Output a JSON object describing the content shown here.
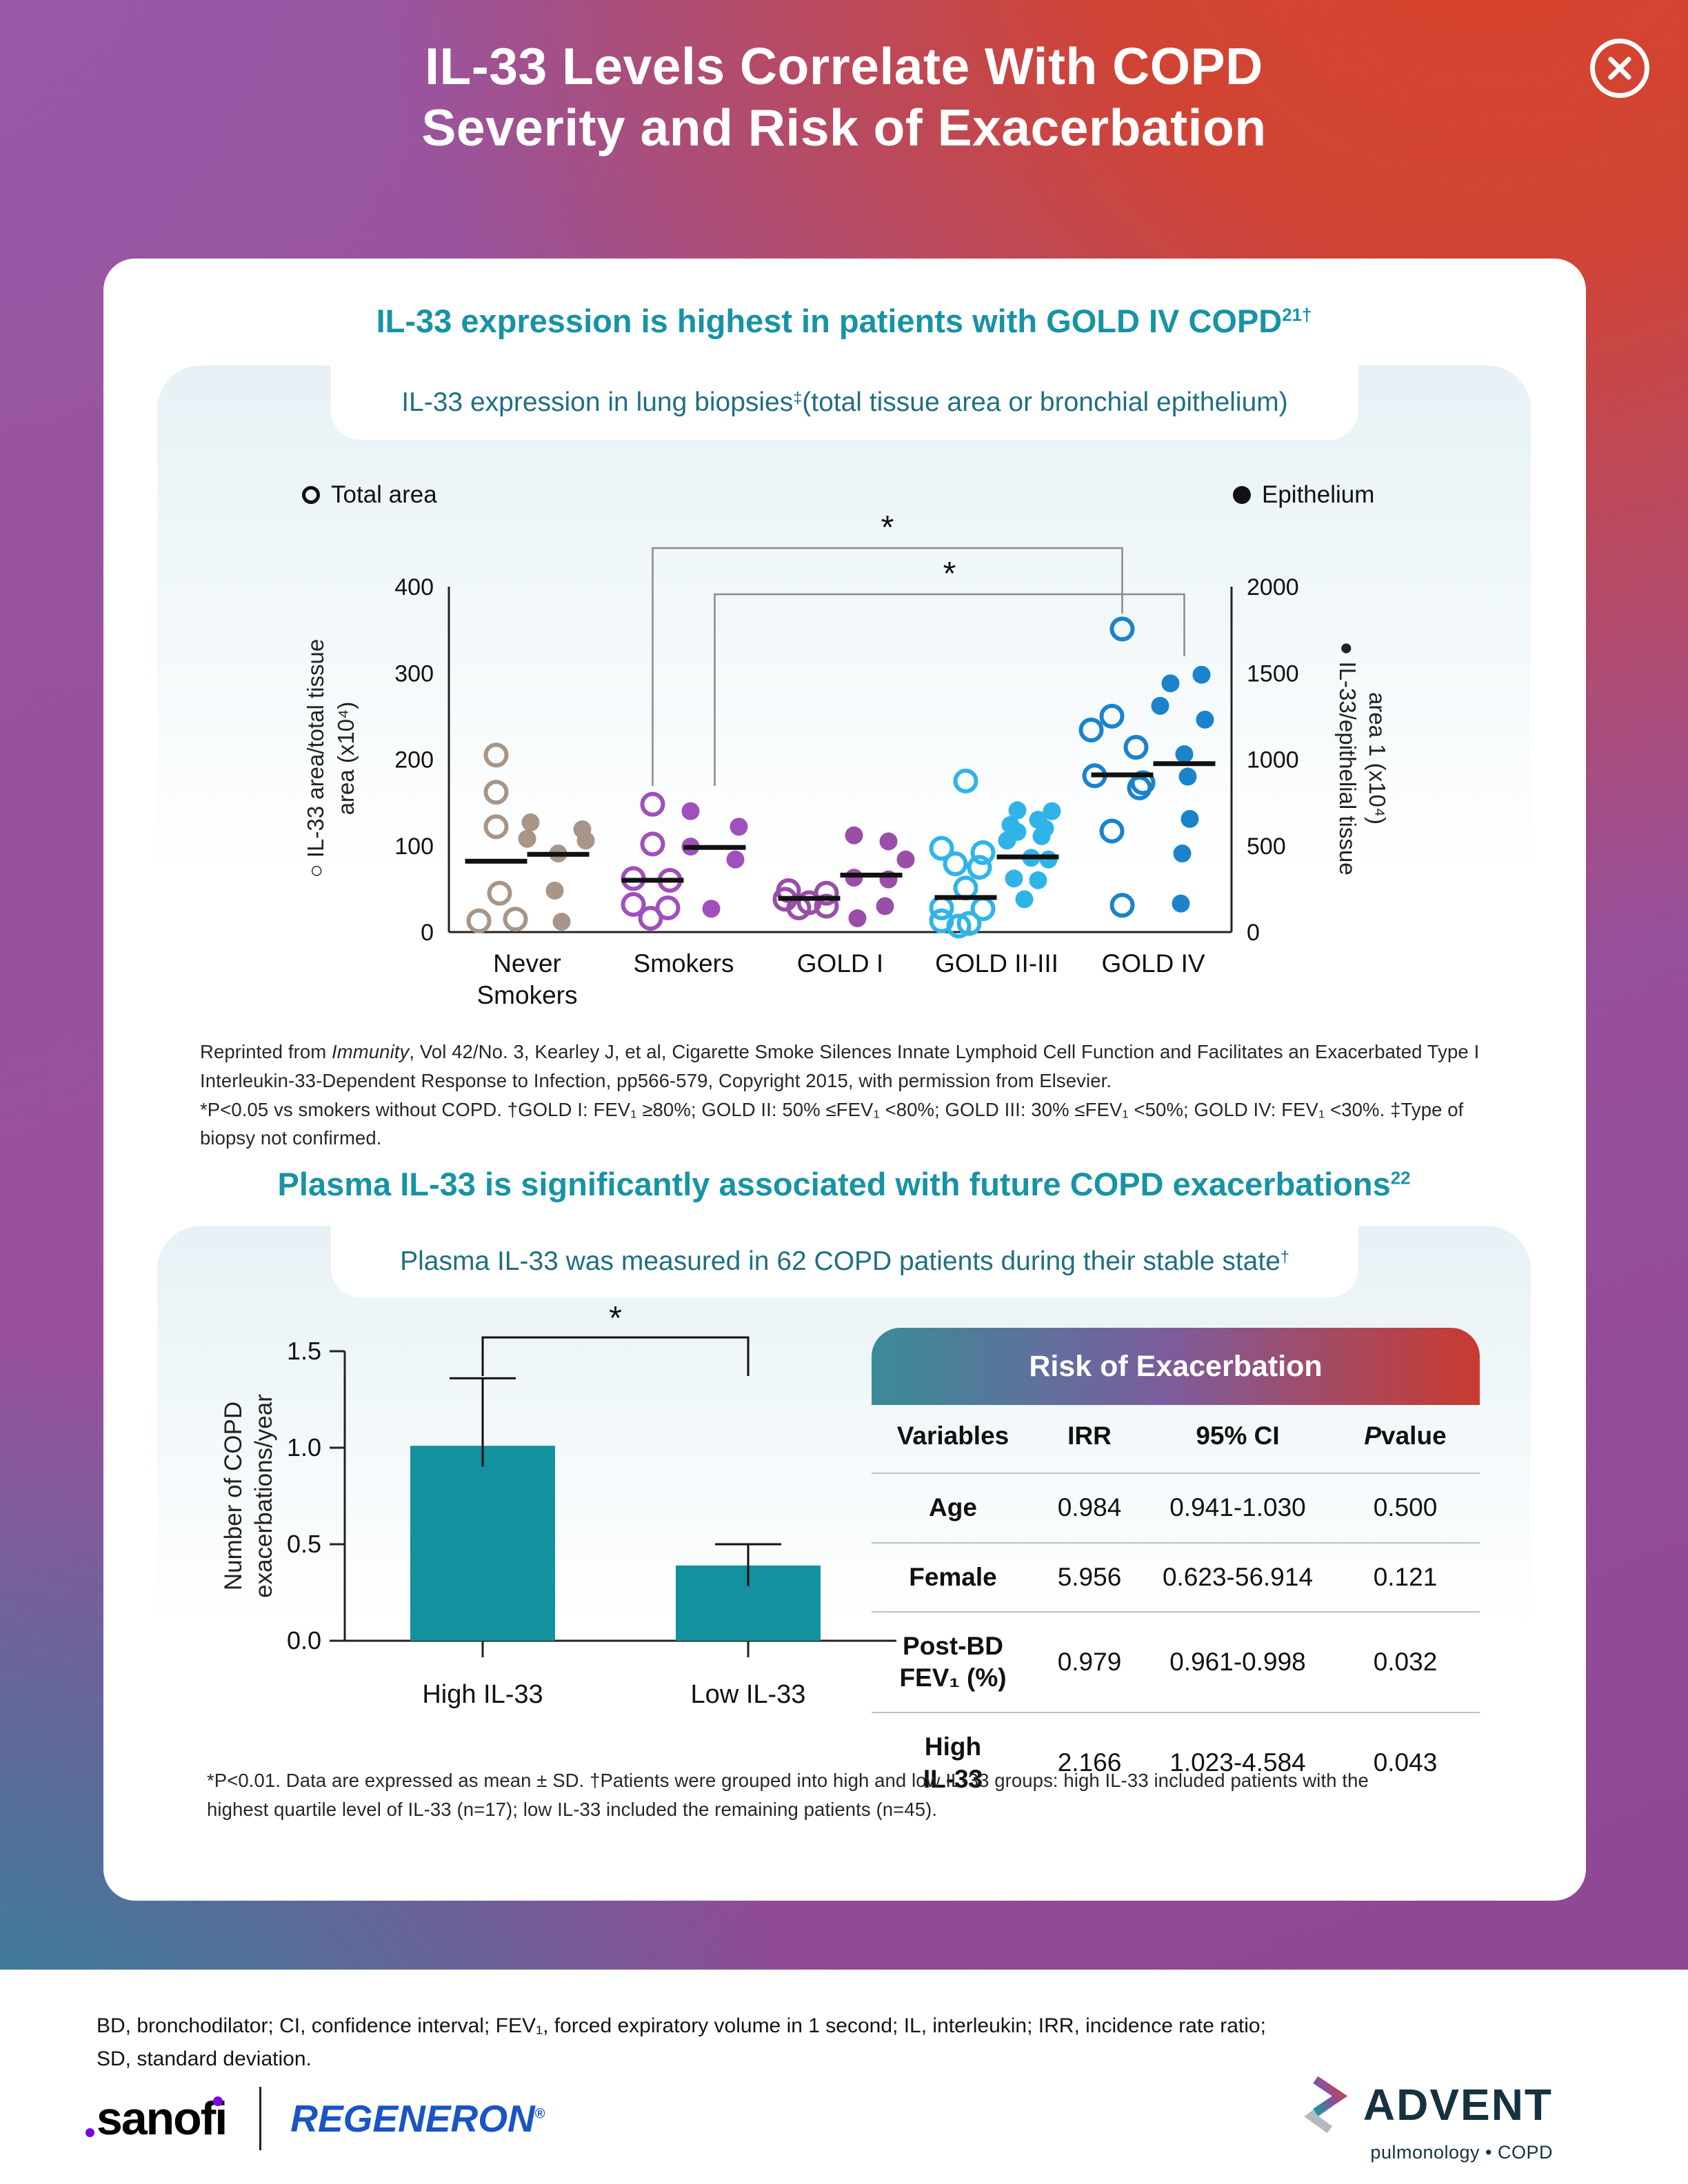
{
  "header": {
    "title_line1": "IL-33 Levels Correlate With COPD",
    "title_line2": "Severity and Risk of Exacerbation"
  },
  "section1": {
    "heading": "IL-33 expression is highest in patients with GOLD IV COPD",
    "heading_sup": "21†",
    "subtitle": "IL-33 expression in lung biopsies",
    "subtitle_sup": "‡",
    "subtitle_rest": " (total tissue area or bronchial epithelium)",
    "legend": {
      "open": "Total area",
      "filled": "Epithelium"
    },
    "footnote": {
      "reprint_pre": "Reprinted from ",
      "reprint_italic": "Immunity",
      "reprint_rest": ", Vol 42/No. 3, Kearley J, et al, Cigarette Smoke Silences Innate Lymphoid Cell Function and Facilitates an Exacerbated Type I Interleukin-33-Dependent Response to Infection, pp566-579, Copyright 2015, with permission from Elsevier.",
      "stats": "*P<0.05 vs smokers without COPD. †GOLD I: FEV₁ ≥80%; GOLD II: 50% ≤FEV₁ <80%; GOLD III: 30% ≤FEV₁ <50%; GOLD IV: FEV₁ <30%. ‡Type of biopsy not confirmed."
    }
  },
  "section2": {
    "heading": "Plasma IL-33 is significantly associated with future COPD exacerbations",
    "heading_sup": "22",
    "subtitle": "Plasma IL-33 was measured in 62 COPD patients during their stable state",
    "subtitle_sup": "†",
    "footnote": "*P<0.01. Data are expressed as mean ± SD. †Patients were grouped into high and low IL-33 groups: high IL-33 included patients with the highest quartile level of IL-33 (n=17); low IL-33 included the remaining patients (n=45)."
  },
  "chart_data": [
    {
      "type": "scatter",
      "title": "IL-33 expression in lung biopsies (total tissue area or bronchial epithelium)",
      "legend": [
        "Total area",
        "Epithelium"
      ],
      "left_axis": {
        "label_lines": [
          "○ IL-33 area/total tissue",
          "area (x10⁴)"
        ],
        "lim": [
          0,
          400
        ],
        "ticks": [
          0,
          100,
          200,
          300,
          400
        ]
      },
      "right_axis": {
        "label_lines": [
          "● IL-33/epithelial tissue",
          "area 1 (x10⁴)"
        ],
        "lim": [
          0,
          2000
        ],
        "ticks": [
          0,
          500,
          1000,
          1500,
          2000
        ]
      },
      "groups": [
        {
          "label_lines": [
            "Never",
            "Smokers"
          ],
          "color": "#a79587",
          "open_points": [
            [
              0,
              205
            ],
            [
              0,
              162
            ],
            [
              0,
              122
            ],
            [
              5,
              45
            ],
            [
              -25,
              13
            ],
            [
              28,
              15
            ]
          ],
          "open_median": 82,
          "filled_points": [
            [
              -40,
              635
            ],
            [
              35,
              595
            ],
            [
              -45,
              540
            ],
            [
              40,
              530
            ],
            [
              0,
              455
            ],
            [
              -5,
              240
            ],
            [
              5,
              60
            ]
          ],
          "filled_median": 450
        },
        {
          "label_lines": [
            "Smokers"
          ],
          "color": "#a050bb",
          "open_points": [
            [
              0,
              148
            ],
            [
              0,
              102
            ],
            [
              -28,
              62
            ],
            [
              25,
              60
            ],
            [
              -28,
              32
            ],
            [
              22,
              28
            ],
            [
              -3,
              16
            ]
          ],
          "open_median": 60,
          "filled_points": [
            [
              -35,
              700
            ],
            [
              35,
              610
            ],
            [
              -35,
              495
            ],
            [
              30,
              420
            ],
            [
              -5,
              135
            ]
          ],
          "filled_median": 490
        },
        {
          "label_lines": [
            "GOLD I"
          ],
          "color": "#9a4ea8",
          "open_points": [
            [
              -30,
              48
            ],
            [
              25,
              45
            ],
            [
              -35,
              38
            ],
            [
              0,
              34
            ],
            [
              25,
              30
            ],
            [
              -15,
              28
            ]
          ],
          "open_median": 39,
          "filled_points": [
            [
              -25,
              560
            ],
            [
              25,
              525
            ],
            [
              50,
              420
            ],
            [
              -25,
              315
            ],
            [
              25,
              305
            ],
            [
              20,
              150
            ],
            [
              -20,
              80
            ]
          ],
          "filled_median": 330
        },
        {
          "label_lines": [
            "GOLD II-III"
          ],
          "color": "#30b4e8",
          "open_points": [
            [
              0,
              175
            ],
            [
              -35,
              97
            ],
            [
              25,
              92
            ],
            [
              -15,
              79
            ],
            [
              20,
              75
            ],
            [
              0,
              51
            ],
            [
              -35,
              28
            ],
            [
              25,
              27
            ],
            [
              -35,
              13
            ],
            [
              5,
              10
            ],
            [
              -10,
              7
            ]
          ],
          "open_median": 40,
          "filled_points": [
            [
              -15,
              705
            ],
            [
              35,
              700
            ],
            [
              15,
              650
            ],
            [
              -25,
              620
            ],
            [
              25,
              600
            ],
            [
              -15,
              580
            ],
            [
              20,
              555
            ],
            [
              -30,
              530
            ],
            [
              5,
              430
            ],
            [
              30,
              420
            ],
            [
              -20,
              310
            ],
            [
              15,
              300
            ],
            [
              -5,
              190
            ]
          ],
          "filled_median": 435
        },
        {
          "label_lines": [
            "GOLD IV"
          ],
          "color": "#1a83cc",
          "open_points": [
            [
              0,
              351
            ],
            [
              -15,
              250
            ],
            [
              -45,
              234
            ],
            [
              20,
              214
            ],
            [
              -40,
              181
            ],
            [
              25,
              167
            ],
            [
              30,
              173
            ],
            [
              -15,
              117
            ],
            [
              0,
              31
            ]
          ],
          "open_median": 182,
          "filled_points": [
            [
              25,
              1490
            ],
            [
              -20,
              1440
            ],
            [
              -35,
              1310
            ],
            [
              30,
              1230
            ],
            [
              0,
              1030
            ],
            [
              5,
              900
            ],
            [
              8,
              655
            ],
            [
              -3,
              455
            ],
            [
              -5,
              165
            ]
          ],
          "filled_median": 975
        }
      ],
      "significance_stars": [
        "*",
        "*"
      ]
    },
    {
      "type": "bar",
      "categories": [
        "High IL-33",
        "Low IL-33"
      ],
      "values": [
        1.01,
        0.39
      ],
      "error_up": [
        0.35,
        0.11
      ],
      "ylabel_lines": [
        "Number of COPD",
        "exacerbations/year"
      ],
      "ylim": [
        0,
        1.5
      ],
      "yticks": [
        "0.0",
        "0.5",
        "1.0",
        "1.5"
      ],
      "bar_color": "#13919e",
      "significance": "*"
    },
    {
      "type": "table",
      "title": "Risk of Exacerbation",
      "columns": [
        "Variables",
        "IRR",
        "95% CI",
        "P value"
      ],
      "rows": [
        {
          "variable_lines": [
            "Age"
          ],
          "irr": "0.984",
          "ci": "0.941-1.030",
          "p": "0.500"
        },
        {
          "variable_lines": [
            "Female"
          ],
          "irr": "5.956",
          "ci": "0.623-56.914",
          "p": "0.121"
        },
        {
          "variable_lines": [
            "Post-BD",
            "FEV₁ (%)"
          ],
          "irr": "0.979",
          "ci": "0.961-0.998",
          "p": "0.032"
        },
        {
          "variable_lines": [
            "High",
            "IL-33"
          ],
          "irr": "2.166",
          "ci": "1.023-4.584",
          "p": "0.043"
        }
      ]
    }
  ],
  "footer": {
    "abbreviations_line1": "BD, bronchodilator; CI, confidence interval; FEV₁, forced expiratory volume in 1 second; IL, interleukin; IRR, incidence rate ratio;",
    "abbreviations_line2": "SD, standard deviation.",
    "sanofi_logo": "sanofi",
    "regeneron_logo": "REGENERON",
    "regeneron_mark": "®",
    "advent_logo": "ADVENT",
    "advent_tagline": "pulmonology • COPD"
  },
  "colors": {
    "heading_teal": "#1793a5",
    "subtitle_teal": "#1f6f80",
    "bar_teal": "#13919e",
    "table_gradient_left": "#3a8b97",
    "table_gradient_mid": "#7b5d9e",
    "table_gradient_right": "#c93a2f"
  }
}
